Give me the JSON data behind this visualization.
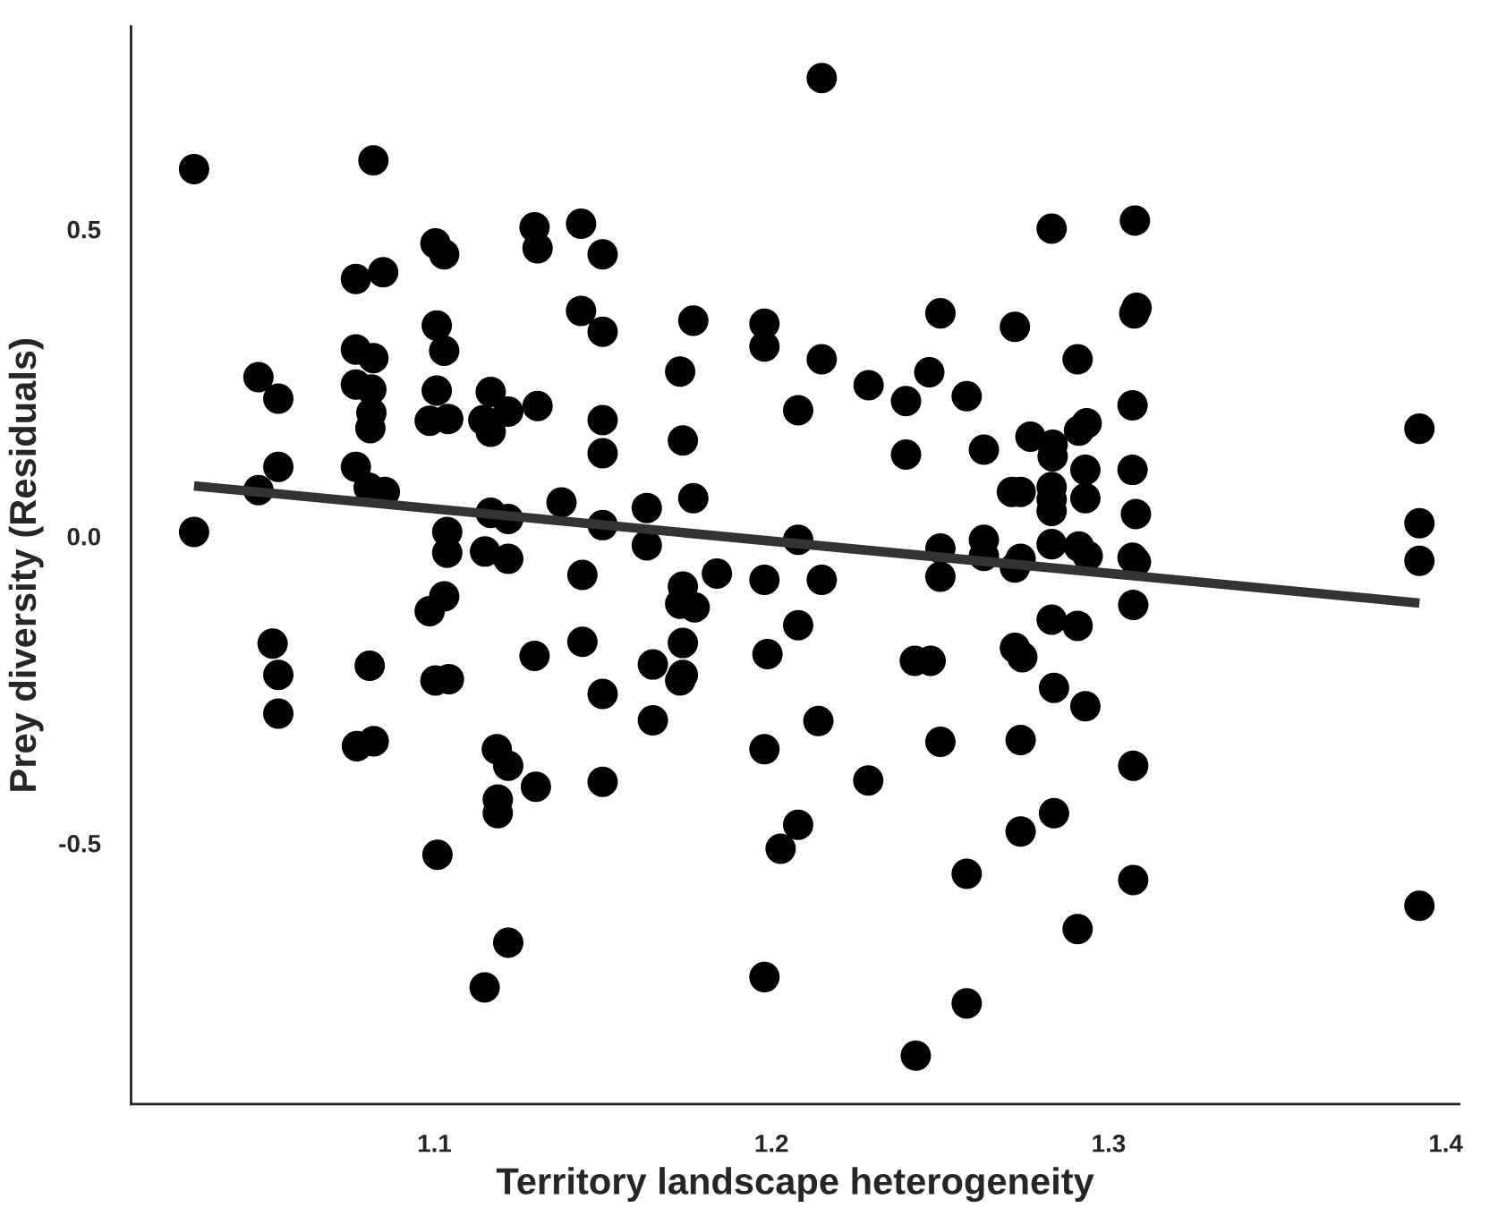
{
  "chart_data": {
    "type": "scatter",
    "xlabel": "Territory landscape heterogeneity",
    "ylabel": "Prey diversity (Residuals)",
    "xlim": [
      1.01,
      1.404
    ],
    "ylim": [
      -0.925,
      0.83
    ],
    "xticks": [
      1.1,
      1.2,
      1.3,
      1.4
    ],
    "yticks": [
      {
        "value": -0.5,
        "label": "-0.5"
      },
      {
        "value": 0,
        "label": "0.0"
      },
      {
        "value": 0.5,
        "label": "0.5"
      }
    ],
    "grid": false,
    "legend": false,
    "series": [
      {
        "color": "#000000",
        "marker": "circle",
        "x": [
          1.0287,
          1.0819,
          1.1297,
          1.1306,
          1.1003,
          1.1029,
          1.1435,
          1.1435,
          1.0767,
          1.0848,
          1.1007,
          1.1029,
          1.0767,
          1.0819,
          1.0478,
          1.0537,
          1.0767,
          1.0813,
          1.0813,
          1.081,
          1.1007,
          1.0986,
          1.1041,
          1.1167,
          1.1145,
          1.1167,
          1.1219,
          1.1306,
          1.0537,
          1.0767,
          1.0805,
          1.0853,
          1.0478,
          1.0287,
          1.1167,
          1.1219,
          1.1377,
          1.1038,
          1.1038,
          1.115,
          1.1219,
          1.2149,
          1.1499,
          1.1499,
          1.1768,
          1.1979,
          1.1979,
          1.1729,
          1.2149,
          1.2501,
          1.2288,
          1.2399,
          1.2468,
          1.2579,
          1.2722,
          1.1499,
          1.1499,
          1.1737,
          1.2079,
          1.2399,
          1.263,
          1.1499,
          1.163,
          1.163,
          1.1768,
          1.2079,
          1.2501,
          1.263,
          1.263,
          1.2713,
          1.1439,
          1.1737,
          1.1729,
          1.1772,
          1.1838,
          1.1979,
          1.2149,
          1.2501,
          1.2079,
          1.1439,
          1.1737,
          1.1648,
          1.1988,
          1.1729,
          1.1737,
          1.1499,
          1.1648,
          1.2139,
          1.1979,
          1.1499,
          1.2287,
          1.2425,
          1.2472,
          1.2501,
          1.2079,
          1.2027,
          1.2579,
          1.1979,
          1.2579,
          1.2428,
          1.1029,
          1.0986,
          1.052,
          1.0537,
          1.0537,
          1.0808,
          1.1003,
          1.1043,
          1.1297,
          1.077,
          1.082,
          1.1185,
          1.1219,
          1.1301,
          1.1188,
          1.1188,
          1.1009,
          1.1219,
          1.1149,
          1.2831,
          1.3078,
          1.3076,
          1.3083,
          1.2908,
          1.3071,
          1.2768,
          1.2834,
          1.2834,
          1.2912,
          1.2935,
          1.2931,
          1.3071,
          1.2739,
          1.2831,
          1.2831,
          1.2831,
          1.2931,
          1.3081,
          1.2831,
          1.2912,
          1.2938,
          1.2739,
          1.3071,
          1.3081,
          1.3922,
          1.3922,
          1.3922,
          1.2722,
          1.3073,
          1.2831,
          1.2908,
          1.2722,
          1.2744,
          1.2838,
          1.2931,
          1.2739,
          1.3073,
          1.2838,
          1.2739,
          1.3073,
          1.2908,
          1.3922
        ],
        "values": [
          0.598,
          0.612,
          0.503,
          0.469,
          0.477,
          0.459,
          0.509,
          0.367,
          0.419,
          0.43,
          0.343,
          0.302,
          0.304,
          0.29,
          0.259,
          0.224,
          0.247,
          0.239,
          0.201,
          0.176,
          0.237,
          0.188,
          0.191,
          0.235,
          0.189,
          0.17,
          0.203,
          0.212,
          0.113,
          0.113,
          0.079,
          0.072,
          0.075,
          0.007,
          0.038,
          0.028,
          0.055,
          0.007,
          -0.027,
          -0.025,
          -0.037,
          0.746,
          0.459,
          0.333,
          0.351,
          0.346,
          0.309,
          0.268,
          0.288,
          0.363,
          0.246,
          0.22,
          0.267,
          0.228,
          0.341,
          0.189,
          0.135,
          0.156,
          0.205,
          0.133,
          0.141,
          0.018,
          0.046,
          -0.015,
          0.062,
          -0.006,
          -0.02,
          -0.006,
          -0.032,
          0.072,
          -0.063,
          -0.082,
          -0.11,
          -0.116,
          -0.061,
          -0.071,
          -0.071,
          -0.066,
          -0.145,
          -0.172,
          -0.174,
          -0.209,
          -0.192,
          -0.235,
          -0.226,
          -0.257,
          -0.3,
          -0.301,
          -0.347,
          -0.4,
          -0.398,
          -0.203,
          -0.203,
          -0.335,
          -0.47,
          -0.509,
          -0.55,
          -0.718,
          -0.761,
          -0.846,
          -0.098,
          -0.122,
          -0.175,
          -0.226,
          -0.289,
          -0.211,
          -0.235,
          -0.233,
          -0.195,
          -0.342,
          -0.334,
          -0.347,
          -0.374,
          -0.408,
          -0.429,
          -0.451,
          -0.519,
          -0.662,
          -0.735,
          0.501,
          0.514,
          0.363,
          0.372,
          0.288,
          0.213,
          0.162,
          0.149,
          0.13,
          0.172,
          0.184,
          0.108,
          0.108,
          0.072,
          0.08,
          0.06,
          0.041,
          0.062,
          0.036,
          -0.013,
          -0.017,
          -0.032,
          -0.037,
          -0.035,
          -0.042,
          0.175,
          0.021,
          -0.04,
          -0.051,
          -0.112,
          -0.136,
          -0.146,
          -0.182,
          -0.197,
          -0.247,
          -0.277,
          -0.332,
          -0.374,
          -0.451,
          -0.481,
          -0.56,
          -0.64,
          -0.602
        ]
      },
      {
        "type": "line",
        "color": "#333333",
        "x": [
          1.0287,
          1.3922
        ],
        "values": [
          0.082,
          -0.109
        ]
      }
    ]
  }
}
